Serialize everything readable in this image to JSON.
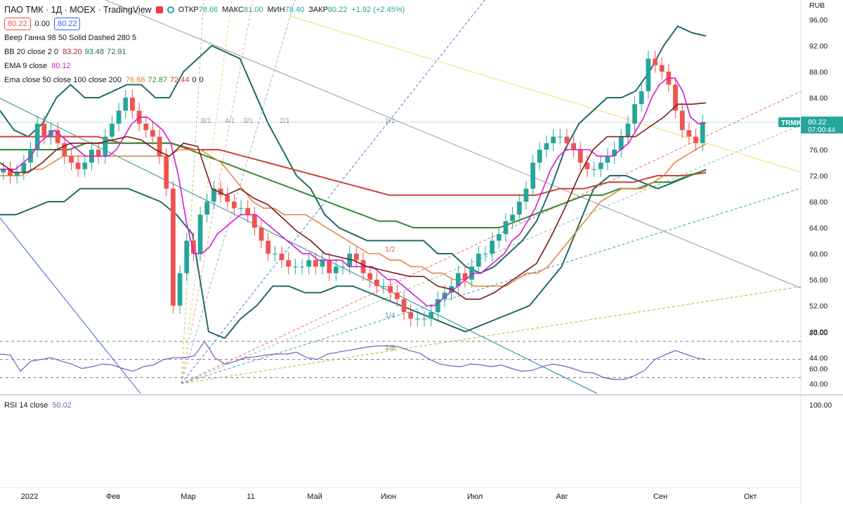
{
  "header": {
    "symbol": "ПАО ТМК · 1Д · MOEX · TradingView",
    "ohlc_open_label": "ОТКР",
    "ohlc_open": "78.66",
    "ohlc_high_label": "МАКС",
    "ohlc_high": "81.00",
    "ohlc_low_label": "МИН",
    "ohlc_low": "78.40",
    "ohlc_close_label": "ЗАКР",
    "ohlc_close": "80.22",
    "change": "+1.92 (+2.45%)",
    "bid": "80.22",
    "spread": "0.00",
    "ask": "80.22"
  },
  "indicators": [
    {
      "name": "Веер Ганна 98 50 Solid Dashed 280 5",
      "values": []
    },
    {
      "name": "BB 20 close 2 0",
      "values": [
        {
          "v": "83.20",
          "color": "#b2223c"
        },
        {
          "v": "93.48",
          "color": "#1e6b6b"
        },
        {
          "v": "72.91",
          "color": "#1e6b6b"
        }
      ]
    },
    {
      "name": "EMA 9 close",
      "values": [
        {
          "v": "80.12",
          "color": "#d81ad0"
        }
      ]
    },
    {
      "name": "Ema close 50 close 100 close 200",
      "values": [
        {
          "v": "76.88",
          "color": "#e3823b"
        },
        {
          "v": "72.87",
          "color": "#2e8b2e"
        },
        {
          "v": "72.44",
          "color": "#d0403a"
        },
        {
          "v": "0",
          "color": "#131722"
        },
        {
          "v": "0",
          "color": "#131722"
        }
      ]
    }
  ],
  "price_axis": {
    "currency": "RUB",
    "ticks": [
      "96.00",
      "92.00",
      "88.00",
      "84.00",
      "80.00",
      "76.00",
      "72.00",
      "68.00",
      "64.00",
      "60.00",
      "56.00",
      "52.00",
      "48.00",
      "44.00",
      "40.00"
    ],
    "last_price": "80.22",
    "countdown": "07:00:44",
    "ticker_tag": "TRMK"
  },
  "rsi": {
    "label": "RSI 14 close",
    "value": "50.02",
    "ticks": [
      "100.00",
      "60.00",
      "20.00"
    ]
  },
  "time_axis": [
    "2022",
    "Фев",
    "Мар",
    "11",
    "Май",
    "Июн",
    "Июл",
    "Авг",
    "Сен",
    "Окт"
  ],
  "gann_labels": [
    "8/1",
    "4/1",
    "3/1",
    "2/1",
    "1/1",
    "1/2",
    "1/4",
    "1/8"
  ],
  "colors": {
    "up": "#26a69a",
    "down": "#ef5350",
    "bb": "#1e6b6b",
    "ema9": "#d81ad0",
    "ema50": "#e3823b",
    "ema100": "#2e8b2e",
    "ema200": "#d0403a",
    "ema_dark": "#7a1a1a",
    "rsi": "#7e57c2",
    "tag": "#26a69a"
  },
  "chart_data": {
    "type": "candlestick",
    "ylim": [
      40,
      98
    ],
    "note_source": "approximate daily closes read from chart",
    "closes": [
      73,
      72,
      72.5,
      74,
      76,
      80,
      78,
      79,
      77,
      75,
      74,
      73,
      74,
      76,
      75,
      78,
      80,
      82,
      84,
      82,
      80,
      79,
      78,
      75,
      70,
      52,
      57,
      62,
      60,
      66,
      68,
      70,
      69,
      68,
      67,
      67,
      66,
      64,
      62,
      60,
      60,
      59,
      58,
      58,
      58,
      59,
      58,
      59,
      57,
      58,
      58,
      60,
      59,
      57,
      56,
      55,
      55,
      54,
      53,
      51,
      50,
      50,
      50,
      51,
      53,
      54,
      55,
      57,
      56,
      58,
      60,
      60,
      62,
      63,
      65,
      66,
      68,
      70,
      74,
      76,
      77,
      78,
      78,
      77,
      76,
      74,
      73,
      73,
      74,
      75,
      76,
      78,
      80,
      83,
      85,
      90,
      89,
      88,
      86,
      82,
      79,
      78,
      77,
      80.22
    ],
    "ema9": [
      73,
      73,
      73,
      74,
      75,
      77,
      78,
      79,
      78,
      77,
      76,
      75,
      75,
      75,
      75,
      76,
      78,
      80,
      81,
      81,
      80,
      79,
      77,
      72,
      65,
      60,
      60,
      61,
      63,
      64,
      65,
      66,
      66,
      66,
      65,
      64,
      63,
      62,
      61,
      60,
      60,
      59,
      59,
      59,
      59,
      58,
      58,
      58,
      58,
      57,
      56,
      56,
      55,
      54,
      53,
      52,
      52,
      53,
      54,
      55,
      56,
      57,
      57,
      58,
      59,
      60,
      62,
      63,
      65,
      67,
      70,
      73,
      75,
      76,
      76,
      76,
      76,
      75,
      75,
      75,
      76,
      77,
      79,
      81,
      84,
      86,
      87,
      87,
      85,
      81,
      80,
      80.12
    ],
    "ema50": [
      72,
      72,
      72,
      73,
      73,
      74,
      75,
      75,
      75,
      75,
      75,
      75,
      75,
      75,
      75,
      75,
      75,
      76,
      76,
      76,
      75,
      74,
      72,
      70,
      68,
      67,
      67,
      66,
      66,
      66,
      65,
      64,
      63,
      62,
      61,
      60,
      60,
      59,
      59,
      58,
      58,
      57,
      57,
      56,
      56,
      55,
      55,
      55,
      55,
      56,
      57,
      57,
      58,
      60,
      62,
      64,
      66,
      68,
      69,
      70,
      70,
      70,
      71,
      72,
      74,
      75,
      76,
      76.88
    ],
    "ema100": [
      76,
      76,
      76,
      76,
      76,
      77,
      77,
      77,
      77,
      77,
      77,
      76,
      75,
      74,
      73,
      72,
      71,
      70,
      69,
      68,
      67,
      66,
      65,
      65,
      64,
      64,
      64,
      64,
      64,
      64,
      65,
      66,
      67,
      68,
      69,
      69,
      70,
      70,
      71,
      71,
      72,
      72.87
    ],
    "ema200": [
      78,
      78,
      78,
      78,
      78,
      77,
      77,
      77,
      76,
      76,
      75,
      74,
      73,
      72,
      71,
      70,
      69,
      69,
      69,
      69,
      69,
      69,
      69,
      70,
      70,
      71,
      71,
      72,
      72,
      72.44
    ],
    "bb_upper": [
      82,
      79,
      78,
      80,
      84,
      86,
      84,
      84,
      85,
      86,
      86,
      84,
      84,
      88,
      90,
      92,
      91,
      90,
      85,
      80,
      76,
      72,
      70,
      66,
      64,
      63,
      62,
      62,
      62,
      62,
      62,
      60,
      60,
      58,
      57,
      58,
      60,
      62,
      65,
      70,
      76,
      80,
      82,
      84,
      84,
      85,
      88,
      92,
      95,
      94,
      93.48
    ],
    "bb_lower": [
      66,
      66,
      67,
      68,
      68,
      70,
      70,
      70,
      70,
      69,
      68,
      66,
      63,
      48,
      47,
      50,
      52,
      55,
      55,
      54,
      54,
      55,
      55,
      54,
      53,
      52,
      51,
      50,
      49,
      48,
      49,
      50,
      51,
      52,
      55,
      58,
      64,
      70,
      72,
      72,
      71,
      70,
      71,
      72,
      72.91
    ],
    "rsi_values": [
      44,
      45,
      63,
      52,
      50,
      48,
      52,
      55,
      60,
      58,
      55,
      56,
      60,
      63,
      58,
      56,
      50,
      48,
      48,
      46,
      30,
      48,
      55,
      52,
      48,
      47,
      45,
      44,
      44,
      42,
      48,
      50,
      44,
      42,
      40,
      38,
      36,
      35,
      35,
      36,
      40,
      43,
      50,
      55,
      57,
      58,
      55,
      56,
      58,
      56,
      60,
      63,
      62,
      58,
      55,
      57,
      60,
      64,
      65,
      70,
      72,
      72,
      68,
      62,
      50,
      45,
      40,
      44,
      48,
      50.02
    ]
  }
}
